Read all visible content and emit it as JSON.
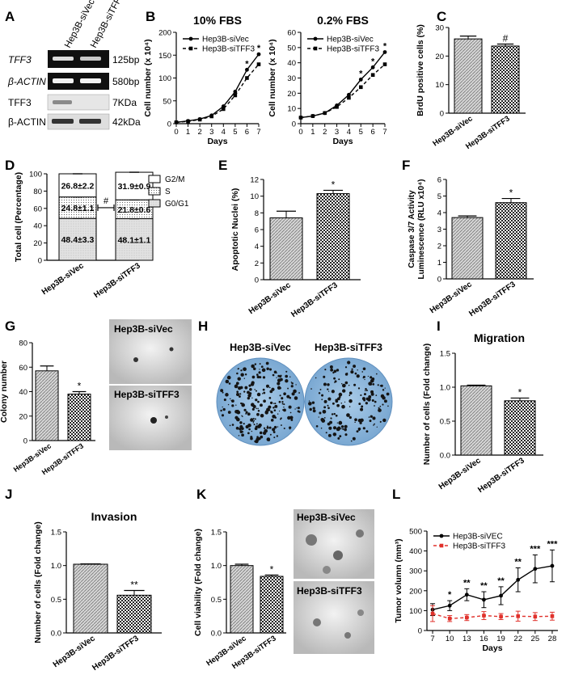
{
  "panel_labels": {
    "A": "A",
    "B": "B",
    "C": "C",
    "D": "D",
    "E": "E",
    "F": "F",
    "G": "G",
    "H": "H",
    "I": "I",
    "J": "J",
    "K": "K",
    "L": "L"
  },
  "groups": {
    "vec": "Hep3B-siVec",
    "ti": "Hep3B-siTFF3"
  },
  "sig": {
    "one": "*",
    "two": "**",
    "three": "***",
    "hash": "#"
  },
  "colors": {
    "black": "#000000",
    "red": "#e0312b",
    "dish": "#8fb7da"
  },
  "panelA": {
    "lanes": [
      "Hep3B-siVec",
      "Hep3B-siTFF3"
    ],
    "rows": [
      {
        "name": "TFF3",
        "size": "125bp",
        "italic": true
      },
      {
        "name": "β-ACTIN",
        "size": "580bp",
        "italic": true
      },
      {
        "name": "TFF3",
        "size": "7KDa",
        "italic": false
      },
      {
        "name": "β-ACTIN",
        "size": "42kDa",
        "italic": false
      }
    ]
  },
  "panelH": {
    "labels": [
      "Hep3B-siVec",
      "Hep3B-siTFF3"
    ]
  },
  "panelG_images": {
    "labels": [
      "Hep3B-siVec",
      "Hep3B-siTFF3"
    ]
  },
  "panelK_images": {
    "labels": [
      "Hep3B-siVec",
      "Hep3B-siTFF3"
    ]
  },
  "chart_data": [
    {
      "id": "B1",
      "type": "line",
      "title": "10% FBS",
      "xlabel": "Days",
      "ylabel": "Cell number (x 10⁴)",
      "x": [
        0,
        1,
        2,
        3,
        4,
        5,
        6,
        7
      ],
      "xlim": [
        0,
        7
      ],
      "ylim": [
        0,
        200
      ],
      "yticks": [
        0,
        50,
        100,
        150,
        200
      ],
      "series": [
        {
          "name": "Hep3B-siVec",
          "values": [
            3,
            6,
            10,
            18,
            38,
            70,
            118,
            152
          ]
        },
        {
          "name": "Hep3B-siTFF3",
          "values": [
            3,
            5,
            9,
            16,
            32,
            62,
            100,
            130
          ]
        }
      ],
      "annotations": [
        {
          "x": 6,
          "text": "*"
        },
        {
          "x": 7,
          "text": "*"
        }
      ]
    },
    {
      "id": "B2",
      "type": "line",
      "title": "0.2% FBS",
      "xlabel": "Days",
      "ylabel": "Cell number (x 10⁴)",
      "x": [
        0,
        1,
        2,
        3,
        4,
        5,
        6,
        7
      ],
      "xlim": [
        0,
        7
      ],
      "ylim": [
        0,
        60
      ],
      "yticks": [
        0,
        10,
        20,
        30,
        40,
        50,
        60
      ],
      "series": [
        {
          "name": "Hep3B-siVec",
          "values": [
            4,
            5,
            7,
            12,
            19,
            29,
            37,
            47
          ]
        },
        {
          "name": "Hep3B-siTFF3",
          "values": [
            4,
            5,
            7,
            11,
            17,
            24,
            32,
            39
          ]
        }
      ],
      "annotations": [
        {
          "x": 5,
          "text": "*"
        },
        {
          "x": 6,
          "text": "*"
        },
        {
          "x": 7,
          "text": "*"
        }
      ]
    },
    {
      "id": "C",
      "type": "bar",
      "ylabel": "BrdU positive cells (%)",
      "categories": [
        "Hep3B-siVec",
        "Hep3B-siTFF3"
      ],
      "values": [
        26,
        23.5
      ],
      "errors": [
        1,
        0.7
      ],
      "ylim": [
        0,
        30
      ],
      "yticks": [
        0,
        10,
        20,
        30
      ],
      "annotations": [
        "",
        "#"
      ]
    },
    {
      "id": "D",
      "type": "bar",
      "stacked": true,
      "ylabel": "Total cell (Percentage)",
      "categories": [
        "Hep3B-siVec",
        "Hep3B-siTFF3"
      ],
      "ylim": [
        0,
        100
      ],
      "yticks": [
        0,
        20,
        40,
        60,
        80,
        100
      ],
      "series": [
        {
          "name": "G0/G1",
          "values": [
            48.4,
            48.1
          ],
          "labels": [
            "48.4±3.3",
            "48.1±1.1"
          ]
        },
        {
          "name": "S",
          "values": [
            24.8,
            21.8
          ],
          "labels": [
            "24.8±1.1",
            "21.8±0.6"
          ]
        },
        {
          "name": "G2/M",
          "values": [
            26.8,
            31.9
          ],
          "labels": [
            "26.8±2.2",
            "31.9±0.9"
          ]
        }
      ],
      "legend_order": [
        "G2/M",
        "S",
        "G0/G1"
      ],
      "annotation": "#"
    },
    {
      "id": "E",
      "type": "bar",
      "ylabel": "Apoptotic Nuclei (%)",
      "categories": [
        "Hep3B-siVec",
        "Hep3B-siTFF3"
      ],
      "values": [
        7.4,
        10.3
      ],
      "errors": [
        0.8,
        0.4
      ],
      "ylim": [
        0,
        12
      ],
      "yticks": [
        0,
        2,
        4,
        6,
        8,
        10,
        12
      ],
      "annotations": [
        "",
        "*"
      ]
    },
    {
      "id": "F",
      "type": "bar",
      "ylabel": "Caspase 3/7 Activity",
      "ylabel2": "Luminescence (RLU x10⁴)",
      "categories": [
        "Hep3B-siVec",
        "Hep3B-siTFF3"
      ],
      "values": [
        3.7,
        4.6
      ],
      "errors": [
        0.1,
        0.25
      ],
      "ylim": [
        0,
        6
      ],
      "yticks": [
        0,
        1,
        2,
        3,
        4,
        5,
        6
      ],
      "annotations": [
        "",
        "*"
      ]
    },
    {
      "id": "G",
      "type": "bar",
      "ylabel": "Colony number",
      "categories": [
        "Hep3B-siVec",
        "Hep3B-siTFF3"
      ],
      "values": [
        57,
        38
      ],
      "errors": [
        4,
        2
      ],
      "ylim": [
        0,
        80
      ],
      "yticks": [
        0,
        20,
        40,
        60,
        80
      ],
      "annotations": [
        "",
        "*"
      ]
    },
    {
      "id": "I",
      "type": "bar",
      "title": "Migration",
      "ylabel": "Number of cells (Fold change)",
      "categories": [
        "Hep3B-siVec",
        "Hep3B-siTFF3"
      ],
      "values": [
        1.02,
        0.8
      ],
      "errors": [
        0.01,
        0.04
      ],
      "ylim": [
        0,
        1.5
      ],
      "yticks": [
        0.0,
        0.5,
        1.0,
        1.5
      ],
      "annotations": [
        "",
        "*"
      ]
    },
    {
      "id": "J",
      "type": "bar",
      "title": "Invasion",
      "ylabel": "Number of cells (Fold change)",
      "categories": [
        "Hep3B-siVec",
        "Hep3B-siTFF3"
      ],
      "values": [
        1.02,
        0.56
      ],
      "errors": [
        0.005,
        0.07
      ],
      "ylim": [
        0,
        1.5
      ],
      "yticks": [
        0.0,
        0.5,
        1.0,
        1.5
      ],
      "annotations": [
        "",
        "**"
      ]
    },
    {
      "id": "K",
      "type": "bar",
      "ylabel": "Cell viability (Fold change)",
      "categories": [
        "Hep3B-siVec",
        "Hep3B-siTFF3"
      ],
      "values": [
        1.0,
        0.84
      ],
      "errors": [
        0.02,
        0.02
      ],
      "ylim": [
        0,
        1.5
      ],
      "yticks": [
        0.0,
        0.5,
        1.0,
        1.5
      ],
      "annotations": [
        "",
        "*"
      ]
    },
    {
      "id": "L",
      "type": "line",
      "xlabel": "Days",
      "ylabel": "Tumor volumn (mm³)",
      "x": [
        7,
        10,
        13,
        16,
        19,
        22,
        25,
        28
      ],
      "ylim": [
        0,
        500
      ],
      "yticks": [
        0,
        100,
        200,
        300,
        400,
        500
      ],
      "series": [
        {
          "name": "Hep3B-siVEC",
          "color": "#000000",
          "values": [
            105,
            125,
            180,
            155,
            175,
            255,
            310,
            325
          ],
          "errors": [
            30,
            25,
            30,
            40,
            45,
            60,
            70,
            80
          ]
        },
        {
          "name": "Hep3B-siTFF3",
          "color": "#e0312b",
          "values": [
            85,
            60,
            65,
            75,
            70,
            72,
            70,
            72
          ],
          "errors": [
            40,
            15,
            15,
            20,
            15,
            25,
            20,
            20
          ]
        }
      ],
      "annotations": [
        {
          "x": 10,
          "text": "*"
        },
        {
          "x": 13,
          "text": "**"
        },
        {
          "x": 16,
          "text": "**"
        },
        {
          "x": 19,
          "text": "**"
        },
        {
          "x": 22,
          "text": "**"
        },
        {
          "x": 25,
          "text": "***"
        },
        {
          "x": 28,
          "text": "***"
        }
      ]
    }
  ]
}
